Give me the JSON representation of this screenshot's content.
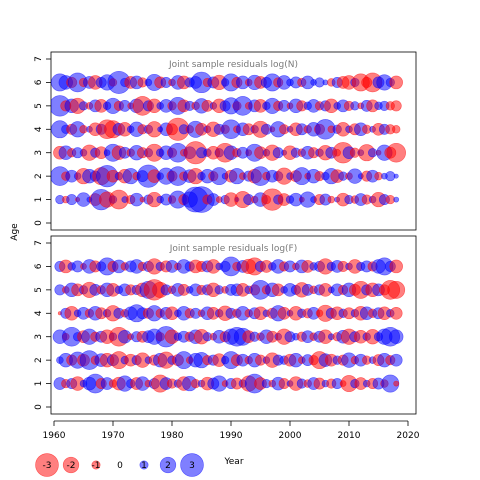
{
  "chart_data": {
    "type": "scatter",
    "subtype": "bubble",
    "shared_x_label": "Year",
    "y_label": "Age",
    "xlim": [
      1960,
      2020
    ],
    "x_ticks": [
      1960,
      1970,
      1980,
      1990,
      2000,
      2010,
      2020
    ],
    "ylim": [
      0,
      7
    ],
    "y_ticks": [
      0,
      1,
      2,
      3,
      4,
      5,
      6,
      7
    ],
    "ages": [
      1,
      2,
      3,
      4,
      5,
      6
    ],
    "years": [
      1961,
      1962,
      1963,
      1964,
      1965,
      1966,
      1967,
      1968,
      1969,
      1970,
      1971,
      1972,
      1973,
      1974,
      1975,
      1976,
      1977,
      1978,
      1979,
      1980,
      1981,
      1982,
      1983,
      1984,
      1985,
      1986,
      1987,
      1988,
      1989,
      1990,
      1991,
      1992,
      1993,
      1994,
      1995,
      1996,
      1997,
      1998,
      1999,
      2000,
      2001,
      2002,
      2003,
      2004,
      2005,
      2006,
      2007,
      2008,
      2009,
      2010,
      2011,
      2012,
      2013,
      2014,
      2015,
      2016,
      2017,
      2018
    ],
    "colors": {
      "positive": "#0000ff",
      "negative": "#ff0000",
      "alpha": 0.5
    },
    "panels": [
      {
        "title": "Joint sample residuals log(N)",
        "residuals": {
          "1": [
            1.0,
            -0.8,
            1.2,
            -0.5,
            1.6,
            0.6,
            -1.4,
            2.4,
            -1.8,
            0.9,
            -2.2,
            0.7,
            -1.0,
            1.5,
            -0.6,
            1.1,
            -1.7,
            0.8,
            1.3,
            -0.9,
            2.0,
            -1.2,
            1.8,
            2.9,
            3.0,
            -1.1,
            1.4,
            -0.7,
            1.0,
            -1.6,
            0.5,
            -1.9,
            1.2,
            -0.8,
            1.6,
            -1.0,
            -2.5,
            1.1,
            -1.4,
            0.9,
            1.5,
            -0.6,
            1.8,
            0.7,
            -1.2,
            1.3,
            -0.8,
            0.6,
            -1.5,
            1.0,
            -0.9,
            1.4,
            -1.1,
            0.8,
            -1.7,
            1.2,
            -1.0,
            0.6
          ],
          "2": [
            2.2,
            -1.0,
            1.4,
            0.8,
            -1.8,
            1.6,
            1.2,
            -2.0,
            2.5,
            -1.4,
            0.9,
            -1.6,
            1.8,
            -0.9,
            1.3,
            2.6,
            -1.5,
            0.8,
            1.9,
            -1.2,
            2.2,
            -1.0,
            1.5,
            -1.8,
            0.9,
            1.6,
            -1.1,
            2.0,
            0.7,
            -1.4,
            1.8,
            -0.8,
            1.2,
            -1.6,
            2.2,
            -0.9,
            1.4,
            1.1,
            -1.9,
            0.8,
            -1.3,
            2.0,
            -0.7,
            1.6,
            -1.1,
            0.9,
            1.8,
            -1.5,
            1.0,
            -0.8,
            1.7,
            0.6,
            -1.2,
            1.4,
            -0.9,
            0.7,
            1.1,
            0.5
          ],
          "3": [
            -1.5,
            1.6,
            -1.0,
            1.2,
            0.8,
            -1.8,
            1.1,
            -1.4,
            0.7,
            2.0,
            -1.6,
            1.3,
            -0.9,
            1.7,
            -1.2,
            1.0,
            -2.0,
            0.9,
            1.6,
            -1.1,
            2.2,
            -0.8,
            1.4,
            -2.6,
            1.2,
            0.9,
            -1.5,
            1.0,
            -2.2,
            1.6,
            -1.0,
            1.3,
            -0.7,
            2.0,
            -1.4,
            0.8,
            -1.8,
            1.2,
            0.6,
            -1.6,
            1.1,
            -0.9,
            1.5,
            -1.2,
            0.9,
            -1.7,
            1.3,
            -0.8,
            -2.4,
            1.4,
            -1.1,
            0.7,
            -1.9,
            1.0,
            -0.6,
            1.8,
            -1.3,
            -2.2
          ],
          "4": [
            2.0,
            1.0,
            -1.2,
            1.8,
            -0.9,
            0.7,
            -1.5,
            1.2,
            -2.2,
            -2.0,
            1.4,
            -1.6,
            0.8,
            1.7,
            -1.1,
            1.0,
            -1.8,
            0.6,
            1.5,
            -1.3,
            -2.6,
            1.1,
            -0.9,
            1.9,
            -1.4,
            0.8,
            -1.7,
            1.2,
            -1.0,
            2.2,
            -0.8,
            1.5,
            -1.3,
            0.9,
            -1.9,
            1.2,
            -0.6,
            1.8,
            -1.1,
            0.7,
            -1.5,
            1.3,
            -0.9,
            1.6,
            -1.2,
            2.3,
            -0.8,
            1.0,
            -1.6,
            0.8,
            -1.3,
            1.5,
            -1.0,
            0.7,
            -1.4,
            1.2,
            -1.1,
            -0.9
          ],
          "5": [
            2.4,
            -1.2,
            1.6,
            -1.8,
            1.0,
            -0.8,
            1.4,
            -1.5,
            0.9,
            1.8,
            -1.1,
            1.3,
            -0.7,
            1.6,
            -2.2,
            1.2,
            -1.6,
            0.8,
            1.5,
            -1.0,
            2.0,
            -1.4,
            1.1,
            -0.9,
            1.7,
            -1.3,
            0.8,
            -1.6,
            1.2,
            1.9,
            -1.0,
            2.2,
            -0.8,
            1.4,
            -1.5,
            0.9,
            1.8,
            -1.1,
            1.3,
            -0.7,
            1.6,
            -1.2,
            0.9,
            1.5,
            -1.0,
            1.2,
            -1.6,
            0.8,
            1.4,
            -1.1,
            1.0,
            -0.7,
            1.3,
            -1.4,
            0.9,
            1.1,
            -1.0,
            -1.2
          ],
          "6": [
            2.0,
            1.6,
            -1.2,
            2.2,
            -1.0,
            1.4,
            -1.6,
            1.2,
            1.8,
            -0.9,
            2.6,
            1.0,
            -1.4,
            1.5,
            -1.1,
            0.8,
            1.9,
            -1.3,
            1.2,
            -0.8,
            1.6,
            -1.5,
            1.1,
            1.4,
            2.4,
            -1.0,
            1.3,
            -1.7,
            0.9,
            2.0,
            -1.2,
            1.5,
            -0.8,
            1.7,
            -1.4,
            1.2,
            2.0,
            -1.1,
            1.6,
            0.8,
            1.3,
            -1.0,
            1.5,
            0.7,
            1.1,
            0.6,
            -0.9,
            1.2,
            -1.4,
            -1.6,
            1.0,
            -2.0,
            -1.2,
            -2.2,
            1.3,
            1.8,
            1.0,
            -1.5
          ]
        }
      },
      {
        "title": "Joint sample residuals log(F)",
        "residuals": {
          "1": [
            1.4,
            -1.0,
            1.2,
            -1.6,
            0.8,
            1.5,
            2.2,
            -1.2,
            1.4,
            -0.9,
            -1.5,
            1.8,
            1.0,
            -1.4,
            1.6,
            -0.8,
            1.2,
            -2.0,
            1.4,
            -1.1,
            0.9,
            -1.6,
            1.7,
            -1.0,
            0.8,
            -1.5,
            1.3,
            1.8,
            -0.7,
            1.2,
            -1.3,
            0.9,
            -1.8,
            2.2,
            -1.4,
            1.0,
            -0.8,
            1.5,
            -1.2,
            0.7,
            -1.6,
            1.1,
            -0.9,
            1.4,
            -1.3,
            0.8,
            -1.1,
            1.2,
            -0.7,
            -1.9,
            1.0,
            -1.4,
            0.8,
            -1.2,
            1.3,
            -0.9,
            2.0,
            -0.6
          ],
          "2": [
            0.8,
            1.6,
            -1.2,
            1.9,
            -1.4,
            2.2,
            -1.0,
            1.5,
            -1.6,
            1.3,
            -2.0,
            0.9,
            -1.4,
            1.1,
            -1.7,
            0.8,
            -1.2,
            1.6,
            -1.9,
            1.0,
            -1.3,
            2.0,
            -0.8,
            1.6,
            1.8,
            -1.1,
            1.2,
            -1.5,
            0.9,
            2.0,
            -1.3,
            1.4,
            -0.9,
            1.6,
            -1.2,
            0.8,
            -1.7,
            1.2,
            1.0,
            -1.4,
            1.6,
            -0.8,
            1.3,
            -1.1,
            -2.0,
            1.5,
            -1.4,
            1.0,
            -1.2,
            1.7,
            -0.9,
            1.4,
            -1.0,
            0.8,
            -1.3,
            1.6,
            -1.1,
            1.4
          ],
          "3": [
            1.6,
            -0.8,
            2.2,
            1.0,
            -1.4,
            1.8,
            -1.1,
            1.3,
            -1.6,
            0.9,
            -2.2,
            1.5,
            -0.7,
            1.2,
            -1.3,
            1.4,
            1.8,
            -1.0,
            2.4,
            -1.6,
            0.9,
            1.3,
            -1.1,
            1.6,
            -1.7,
            1.0,
            -0.8,
            1.5,
            -1.2,
            1.8,
            2.2,
            2.0,
            -1.4,
            1.1,
            -0.9,
            1.6,
            -1.3,
            0.8,
            -1.8,
            1.2,
            0.8,
            -1.1,
            1.4,
            -0.9,
            1.3,
            -1.6,
            0.7,
            -1.0,
            1.5,
            -1.8,
            1.2,
            -1.5,
            0.9,
            -1.7,
            1.0,
            1.8,
            2.2,
            1.6
          ],
          "4": [
            -0.4,
            1.2,
            -1.6,
            0.8,
            1.4,
            -1.0,
            1.6,
            -1.3,
            0.9,
            -1.8,
            1.2,
            -0.9,
            1.5,
            2.0,
            1.3,
            -1.2,
            1.8,
            -1.0,
            1.4,
            -1.5,
            0.8,
            1.6,
            -1.1,
            1.2,
            -0.8,
            1.5,
            -1.4,
            0.9,
            -1.7,
            1.2,
            -1.0,
            1.6,
            -0.9,
            1.3,
            -1.5,
            0.8,
            -1.2,
            1.8,
            -1.4,
            0.7,
            -1.6,
            1.0,
            -1.1,
            1.4,
            -0.8,
            -1.9,
            1.2,
            -1.5,
            1.0,
            -1.3,
            0.9,
            -1.6,
            1.5,
            -1.0,
            1.3,
            -1.5,
            0.9,
            -1.4
          ],
          "5": [
            1.2,
            -0.8,
            1.6,
            -1.4,
            1.0,
            -1.8,
            1.3,
            -1.0,
            1.6,
            -1.5,
            0.9,
            1.4,
            -1.2,
            1.1,
            -1.6,
            2.0,
            -2.4,
            -1.8,
            1.2,
            -0.9,
            1.5,
            -1.3,
            0.8,
            1.4,
            -1.1,
            1.2,
            -1.6,
            1.0,
            -0.8,
            1.3,
            1.4,
            -1.5,
            0.9,
            -1.2,
            2.2,
            -1.0,
            1.6,
            -1.4,
            0.8,
            1.5,
            1.1,
            -1.7,
            1.3,
            -0.9,
            1.2,
            -1.5,
            0.7,
            1.4,
            -1.1,
            1.6,
            -1.3,
            -2.0,
            1.2,
            -1.6,
            1.4,
            -1.2,
            -2.2,
            -2.0
          ],
          "6": [
            1.2,
            -1.5,
            0.9,
            1.3,
            -0.7,
            1.6,
            -1.3,
            1.1,
            2.0,
            -1.2,
            1.5,
            -0.9,
            1.3,
            1.6,
            -1.0,
            1.2,
            -1.8,
            1.0,
            -1.3,
            1.4,
            -0.8,
            1.6,
            1.1,
            -1.5,
            -1.2,
            1.3,
            -1.6,
            0.8,
            1.2,
            2.2,
            -1.0,
            1.4,
            -1.7,
            -2.0,
            1.2,
            -1.4,
            0.9,
            1.6,
            -1.1,
            1.3,
            -0.8,
            1.5,
            -1.4,
            0.9,
            1.2,
            -1.8,
            1.0,
            1.4,
            -1.2,
            0.8,
            -1.6,
            1.0,
            1.3,
            -1.1,
            1.6,
            2.0,
            1.2,
            -1.5
          ]
        }
      }
    ],
    "legend": {
      "placement": "bottom-left",
      "values": [
        -3,
        -2,
        -1,
        0,
        1,
        2,
        3
      ],
      "labels": [
        "-3",
        "-2",
        "-1",
        "0",
        "1",
        "2",
        "3"
      ]
    }
  }
}
